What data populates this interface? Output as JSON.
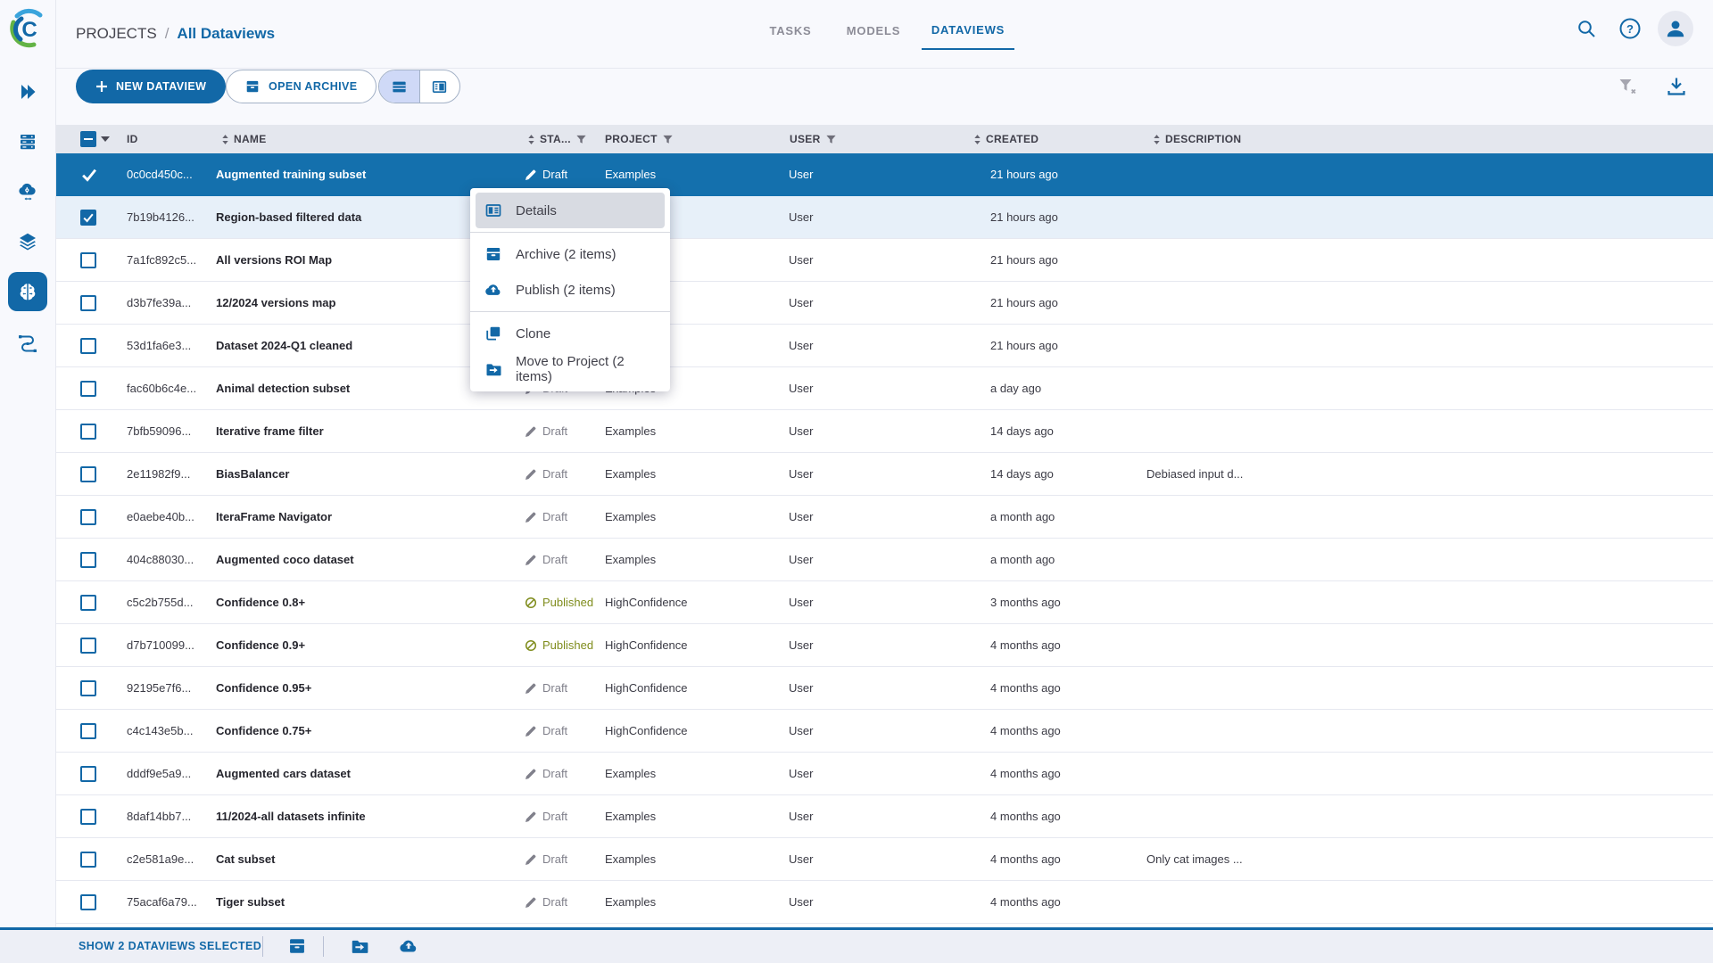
{
  "topbar": {
    "breadcrumb": {
      "root": "PROJECTS",
      "separator": "/",
      "current": "All Dataviews"
    },
    "tabs": [
      {
        "label": "TASKS",
        "active": false
      },
      {
        "label": "MODELS",
        "active": false
      },
      {
        "label": "DATAVIEWS",
        "active": true
      }
    ],
    "icons": [
      "search-icon",
      "help-icon",
      "avatar-icon"
    ]
  },
  "sidebar": {
    "items": [
      {
        "icon": "expand-icon",
        "active": false
      },
      {
        "icon": "datasets-icon",
        "active": false
      },
      {
        "icon": "cloud-ops-icon",
        "active": false
      },
      {
        "icon": "layers-icon",
        "active": false
      },
      {
        "icon": "brain-dataviews-icon",
        "active": true
      },
      {
        "icon": "pipeline-icon",
        "active": false
      }
    ]
  },
  "toolbar": {
    "new_dataview_label": "NEW DATAVIEW",
    "open_archive_label": "OPEN ARCHIVE",
    "view_toggle": {
      "options": [
        "table-view-icon",
        "split-view-icon"
      ],
      "selected": "table-view-icon"
    },
    "right_icons": [
      "clear-filter-icon",
      "download-icon"
    ]
  },
  "table": {
    "select_all_state": "indeterminate",
    "columns": [
      {
        "label": "ID",
        "sort": true
      },
      {
        "label": "NAME",
        "sort": true
      },
      {
        "label": "STA...",
        "sort": true,
        "filter": true
      },
      {
        "label": "PROJECT",
        "filter": true
      },
      {
        "label": "USER",
        "filter": true
      },
      {
        "label": "CREATED",
        "sort": true
      },
      {
        "label": "DESCRIPTION",
        "sort": true
      }
    ],
    "rows": [
      {
        "id": "0c0cd450c...",
        "name": "Augmented training subset",
        "status": "Draft",
        "project": "Examples",
        "user": "User",
        "created": "21 hours ago",
        "description": "",
        "state": "active"
      },
      {
        "id": "7b19b4126...",
        "name": "Region-based filtered data",
        "status": "",
        "project": "",
        "user": "User",
        "created": "21 hours ago",
        "description": "",
        "state": "checked"
      },
      {
        "id": "7a1fc892c5...",
        "name": "All versions ROI Map",
        "status": "",
        "project": "",
        "user": "User",
        "created": "21 hours ago",
        "description": "",
        "state": ""
      },
      {
        "id": "d3b7fe39a...",
        "name": "12/2024 versions map",
        "status": "",
        "project": "",
        "user": "User",
        "created": "21 hours ago",
        "description": "",
        "state": ""
      },
      {
        "id": "53d1fa6e3...",
        "name": "Dataset 2024-Q1 cleaned",
        "status": "",
        "project": "",
        "user": "User",
        "created": "21 hours ago",
        "description": "",
        "state": ""
      },
      {
        "id": "fac60b6c4e...",
        "name": "Animal detection subset",
        "status": "Draft",
        "project": "Examples",
        "user": "User",
        "created": "a day ago",
        "description": "",
        "state": ""
      },
      {
        "id": "7bfb59096...",
        "name": "Iterative frame filter",
        "status": "Draft",
        "project": "Examples",
        "user": "User",
        "created": "14 days ago",
        "description": "",
        "state": ""
      },
      {
        "id": "2e11982f9...",
        "name": "BiasBalancer",
        "status": "Draft",
        "project": "Examples",
        "user": "User",
        "created": "14 days ago",
        "description": "Debiased input d...",
        "state": ""
      },
      {
        "id": "e0aebe40b...",
        "name": "IteraFrame Navigator",
        "status": "Draft",
        "project": "Examples",
        "user": "User",
        "created": "a month ago",
        "description": "",
        "state": ""
      },
      {
        "id": "404c88030...",
        "name": "Augmented coco dataset",
        "status": "Draft",
        "project": "Examples",
        "user": "User",
        "created": "a month ago",
        "description": "",
        "state": ""
      },
      {
        "id": "c5c2b755d...",
        "name": "Confidence 0.8+",
        "status": "Published",
        "project": "HighConfidence",
        "user": "User",
        "created": "3 months ago",
        "description": "",
        "state": ""
      },
      {
        "id": "d7b710099...",
        "name": "Confidence 0.9+",
        "status": "Published",
        "project": "HighConfidence",
        "user": "User",
        "created": "4 months ago",
        "description": "",
        "state": ""
      },
      {
        "id": "92195e7f6...",
        "name": "Confidence 0.95+",
        "status": "Draft",
        "project": "HighConfidence",
        "user": "User",
        "created": "4 months ago",
        "description": "",
        "state": ""
      },
      {
        "id": "c4c143e5b...",
        "name": "Confidence 0.75+",
        "status": "Draft",
        "project": "HighConfidence",
        "user": "User",
        "created": "4 months ago",
        "description": "",
        "state": ""
      },
      {
        "id": "dddf9e5a9...",
        "name": "Augmented cars dataset",
        "status": "Draft",
        "project": "Examples",
        "user": "User",
        "created": "4 months ago",
        "description": "",
        "state": ""
      },
      {
        "id": "8daf14bb7...",
        "name": "11/2024-all datasets infinite",
        "status": "Draft",
        "project": "Examples",
        "user": "User",
        "created": "4 months ago",
        "description": "",
        "state": ""
      },
      {
        "id": "c2e581a9e...",
        "name": "Cat subset",
        "status": "Draft",
        "project": "Examples",
        "user": "User",
        "created": "4 months ago",
        "description": "Only cat images ...",
        "state": ""
      },
      {
        "id": "75acaf6a79...",
        "name": "Tiger subset",
        "status": "Draft",
        "project": "Examples",
        "user": "User",
        "created": "4 months ago",
        "description": "",
        "state": ""
      }
    ]
  },
  "context_menu": {
    "items": [
      {
        "label": "Details",
        "icon": "details-icon",
        "highlighted": true
      },
      {
        "label": "Archive (2 items)",
        "icon": "archive-icon",
        "highlighted": false
      },
      {
        "label": "Publish (2 items)",
        "icon": "publish-icon",
        "highlighted": false
      },
      {
        "label": "Clone",
        "icon": "clone-icon",
        "highlighted": false
      },
      {
        "label": "Move to Project (2 items)",
        "icon": "move-to-project-icon",
        "highlighted": false
      }
    ]
  },
  "footer": {
    "selected_text": "SHOW 2 DATAVIEWS SELECTED",
    "icons": [
      "archive-icon",
      "move-to-project-icon",
      "publish-icon"
    ]
  },
  "colors": {
    "primary_blue": "#1268a7",
    "selected_row_blue": "#1470ad",
    "checked_row_light": "#e7f0f9",
    "published_olive": "#7f8c1c",
    "header_band": "#e4e7ee",
    "topbar_bg": "#f8f9fd",
    "footer_bg": "#edeff6"
  }
}
